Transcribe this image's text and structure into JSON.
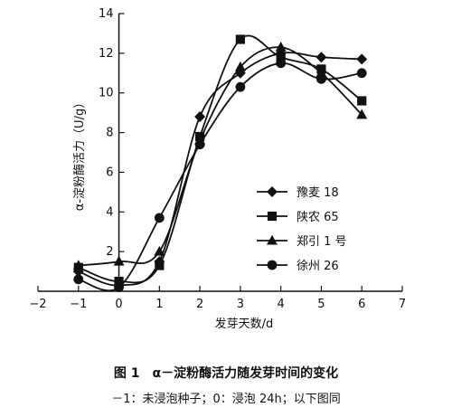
{
  "chart_data": {
    "type": "line",
    "title": "",
    "xlabel": "发芽天数/d",
    "ylabel": "α-淀粉酶活力（U/g）",
    "xlim": [
      -2,
      7
    ],
    "ylim": [
      0,
      14
    ],
    "xticks": [
      -2,
      -1,
      0,
      1,
      2,
      3,
      4,
      5,
      6,
      7
    ],
    "yticks": [
      2,
      4,
      6,
      8,
      10,
      12,
      14
    ],
    "grid": false,
    "legend_position": "middle-right",
    "x": [
      -1,
      0,
      1,
      2,
      3,
      4,
      5,
      6
    ],
    "series": [
      {
        "name": "豫麦 18",
        "marker": "diamond",
        "values": [
          1.0,
          0.3,
          1.5,
          8.8,
          11.0,
          12.0,
          11.8,
          11.7
        ]
      },
      {
        "name": "陕农 65",
        "marker": "square",
        "values": [
          1.2,
          0.5,
          1.3,
          7.8,
          12.7,
          11.8,
          11.2,
          9.6
        ]
      },
      {
        "name": "郑引 1 号",
        "marker": "triangle",
        "values": [
          1.3,
          1.5,
          2.0,
          7.6,
          11.3,
          12.3,
          11.0,
          8.9
        ]
      },
      {
        "name": "徐州 26",
        "marker": "circle",
        "values": [
          0.6,
          0.2,
          3.7,
          7.4,
          10.3,
          11.5,
          10.7,
          11.0
        ]
      }
    ]
  },
  "caption": {
    "title": "图 1　α－淀粉酶活力随发芽时间的变化",
    "note": "－1：未浸泡种子；0：浸泡 24h；以下图同"
  },
  "colors": {
    "ink": "#111111",
    "background": "#ffffff"
  }
}
